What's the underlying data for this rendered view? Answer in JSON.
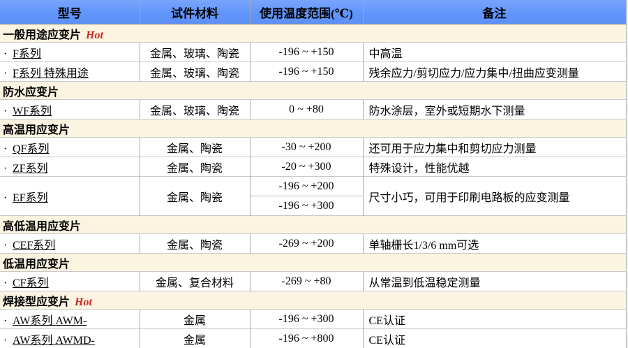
{
  "table": {
    "bullet": "·",
    "hot_label": "Hot",
    "columns": [
      "型号",
      "试件材料",
      "使用温度范围(℃)",
      "备注"
    ],
    "rows": [
      {
        "type": "section",
        "label": "一般用途应变片",
        "hot": true
      },
      {
        "type": "data",
        "model": "F系列",
        "material": "金属、玻璃、陶瓷",
        "temp": "-196 ~ +150",
        "remark": "中高温"
      },
      {
        "type": "data",
        "model": "F系列 特殊用途",
        "material": "金属、玻璃、陶瓷",
        "temp": "-196 ~ +150",
        "remark": "残余应力/剪切应力/应力集中/扭曲应变测量"
      },
      {
        "type": "section",
        "label": "防水应变片",
        "hot": false
      },
      {
        "type": "data",
        "model": "WF系列",
        "material": "金属、玻璃、陶瓷",
        "temp": "0 ~ +80",
        "remark": "防水涂层，室外或短期水下测量"
      },
      {
        "type": "section",
        "label": "高温用应变片",
        "hot": false
      },
      {
        "type": "data",
        "model": "QF系列",
        "material": "金属、陶瓷",
        "temp": "-30 ~ +200",
        "remark": "还可用于应力集中和剪切应力测量"
      },
      {
        "type": "data",
        "model": "ZF系列",
        "material": "金属、陶瓷",
        "temp": "-20 ~ +300",
        "remark": "特殊设计，性能优越"
      },
      {
        "type": "data",
        "model": "EF系列",
        "material": "金属、陶瓷",
        "temps": [
          "-196 ~ +200",
          "-196 ~ +300"
        ],
        "remark": "尺寸小巧，可用于印刷电路板的应变测量"
      },
      {
        "type": "section",
        "label": "高低温用应变片",
        "hot": false
      },
      {
        "type": "data",
        "model": "CEF系列",
        "material": "金属、陶瓷",
        "temp": "-269 ~ +200",
        "remark": "单轴栅长1/3/6 mm可选"
      },
      {
        "type": "section",
        "label": "低温用应变片",
        "hot": false
      },
      {
        "type": "data",
        "model": "CF系列",
        "material": "金属、复合材料",
        "temp": "-269 ~ +80",
        "remark": "从常温到低温稳定测量"
      },
      {
        "type": "section",
        "label": "焊接型应变片",
        "hot": true
      },
      {
        "type": "data",
        "model": "AW系列 AWM-",
        "material": "金属",
        "temp": "-196 ~ +300",
        "remark": "CE认证"
      },
      {
        "type": "data",
        "model": "AW系列 AWMD-",
        "material": "金属",
        "temp": "-196 ~ +800",
        "remark": "CE认证"
      }
    ],
    "colors": {
      "header_bg": "#6598fc",
      "section_bg": "#fbf4e1",
      "hot_red": "#d2241e",
      "grid_vertical": "#a8a8a8",
      "grid_horizontal": "#c9c9c9"
    }
  }
}
